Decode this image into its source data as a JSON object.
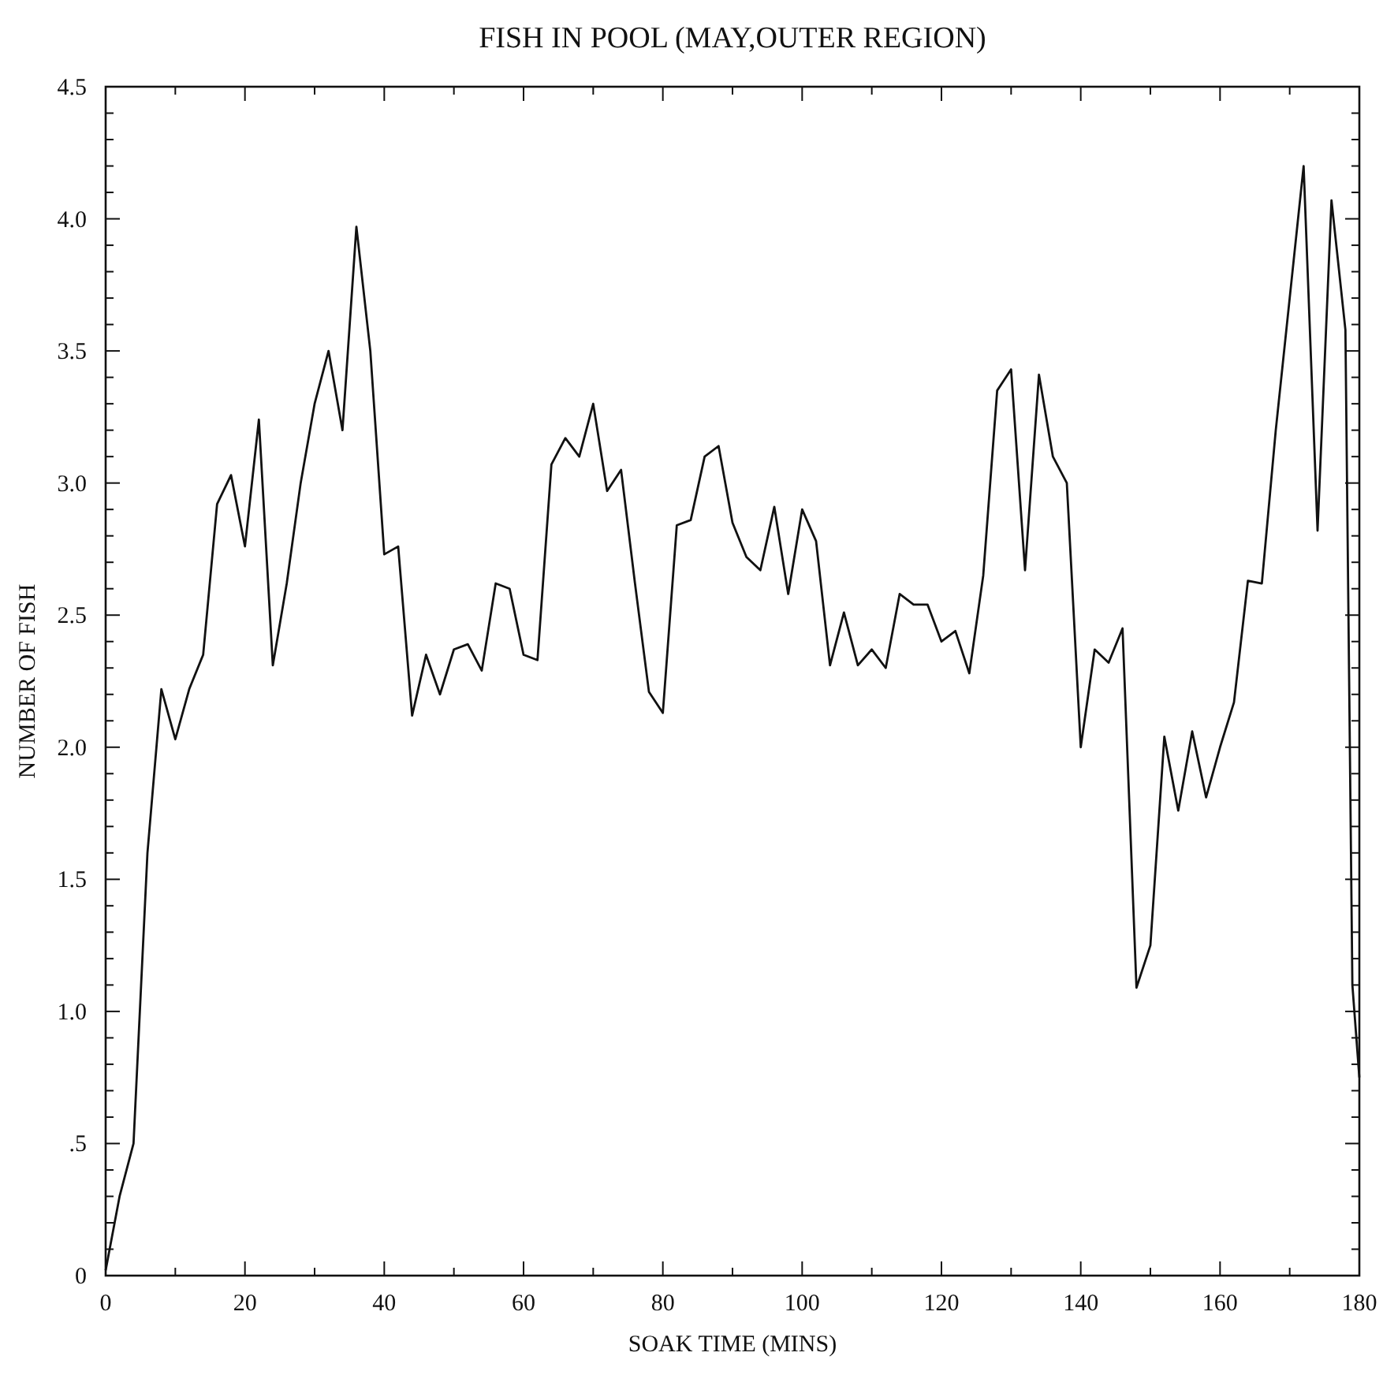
{
  "chart_data": {
    "type": "line",
    "title": "FISH IN POOL (MAY,OUTER REGION)",
    "xlabel": "SOAK TIME (MINS)",
    "ylabel": "NUMBER OF FISH",
    "x": [
      0,
      2,
      4,
      6,
      8,
      10,
      12,
      14,
      16,
      18,
      20,
      22,
      24,
      26,
      28,
      30,
      32,
      34,
      36,
      38,
      40,
      42,
      44,
      46,
      48,
      50,
      52,
      54,
      56,
      58,
      60,
      62,
      64,
      66,
      68,
      70,
      72,
      74,
      76,
      78,
      80,
      82,
      84,
      86,
      88,
      90,
      92,
      94,
      96,
      98,
      100,
      102,
      104,
      106,
      108,
      110,
      112,
      114,
      116,
      118,
      120,
      122,
      124,
      126,
      128,
      130,
      132,
      134,
      136,
      138,
      140,
      142,
      144,
      146,
      148,
      150,
      152,
      154,
      156,
      158,
      160,
      162,
      164,
      166,
      168,
      170,
      172,
      174,
      176,
      178,
      179,
      180
    ],
    "series": [
      {
        "color": "#111111",
        "values": [
          0.02,
          0.3,
          0.5,
          1.6,
          2.22,
          2.03,
          2.22,
          2.35,
          2.92,
          3.03,
          2.76,
          3.24,
          2.31,
          2.62,
          3.0,
          3.3,
          3.5,
          3.2,
          3.97,
          3.5,
          2.73,
          2.76,
          2.12,
          2.35,
          2.2,
          2.37,
          2.39,
          2.29,
          2.62,
          2.6,
          2.35,
          2.33,
          3.07,
          3.17,
          3.1,
          3.3,
          2.97,
          3.05,
          2.62,
          2.21,
          2.13,
          2.84,
          2.86,
          3.1,
          3.14,
          2.85,
          2.72,
          2.67,
          2.91,
          2.58,
          2.9,
          2.78,
          2.31,
          2.51,
          2.31,
          2.37,
          2.3,
          2.58,
          2.54,
          2.54,
          2.4,
          2.44,
          2.28,
          2.65,
          3.35,
          3.43,
          2.67,
          3.41,
          3.1,
          3.0,
          2.0,
          2.37,
          2.32,
          2.45,
          1.09,
          1.25,
          2.04,
          1.76,
          2.06,
          1.81,
          2.0,
          2.17,
          2.63,
          2.62,
          3.2,
          3.7,
          4.2,
          2.82,
          4.07,
          3.58,
          1.1,
          0.75
        ]
      }
    ],
    "xlim": [
      0,
      180
    ],
    "ylim": [
      0,
      4.5
    ],
    "xticks": [
      0,
      {
        "value": 10,
        "label": null
      },
      20,
      {
        "value": 30,
        "label": null
      },
      40,
      {
        "value": 50,
        "label": null
      },
      60,
      {
        "value": 70,
        "label": null
      },
      80,
      {
        "value": 90,
        "label": null
      },
      100,
      {
        "value": 110,
        "label": null
      },
      120,
      {
        "value": 130,
        "label": null
      },
      140,
      {
        "value": 150,
        "label": null
      },
      160,
      {
        "value": 170,
        "label": null
      },
      180
    ],
    "yticks": [
      0,
      {
        "value": 0.1,
        "label": null
      },
      {
        "value": 0.2,
        "label": null
      },
      {
        "value": 0.3,
        "label": null
      },
      {
        "value": 0.4,
        "label": null
      },
      {
        "value": 0.5,
        "label": ".5"
      },
      {
        "value": 0.6,
        "label": null
      },
      {
        "value": 0.7,
        "label": null
      },
      {
        "value": 0.8,
        "label": null
      },
      {
        "value": 0.9,
        "label": null
      },
      {
        "value": 1,
        "label": "1.0"
      },
      {
        "value": 1.1,
        "label": null
      },
      {
        "value": 1.2,
        "label": null
      },
      {
        "value": 1.3,
        "label": null
      },
      {
        "value": 1.4,
        "label": null
      },
      1.5,
      {
        "value": 1.6,
        "label": null
      },
      {
        "value": 1.7,
        "label": null
      },
      {
        "value": 1.8,
        "label": null
      },
      {
        "value": 1.9,
        "label": null
      },
      {
        "value": 2,
        "label": "2.0"
      },
      {
        "value": 2.1,
        "label": null
      },
      {
        "value": 2.2,
        "label": null
      },
      {
        "value": 2.3,
        "label": null
      },
      {
        "value": 2.4,
        "label": null
      },
      2.5,
      {
        "value": 2.6,
        "label": null
      },
      {
        "value": 2.7,
        "label": null
      },
      {
        "value": 2.8,
        "label": null
      },
      {
        "value": 2.9,
        "label": null
      },
      {
        "value": 3,
        "label": "3.0"
      },
      {
        "value": 3.1,
        "label": null
      },
      {
        "value": 3.2,
        "label": null
      },
      {
        "value": 3.3,
        "label": null
      },
      {
        "value": 3.4,
        "label": null
      },
      3.5,
      {
        "value": 3.6,
        "label": null
      },
      {
        "value": 3.7,
        "label": null
      },
      {
        "value": 3.8,
        "label": null
      },
      {
        "value": 3.9,
        "label": null
      },
      {
        "value": 4,
        "label": "4.0"
      },
      {
        "value": 4.1,
        "label": null
      },
      {
        "value": 4.2,
        "label": null
      },
      {
        "value": 4.3,
        "label": null
      },
      {
        "value": 4.4,
        "label": null
      },
      4.5
    ],
    "grid": false,
    "line_style": "solid",
    "marker": "none"
  }
}
